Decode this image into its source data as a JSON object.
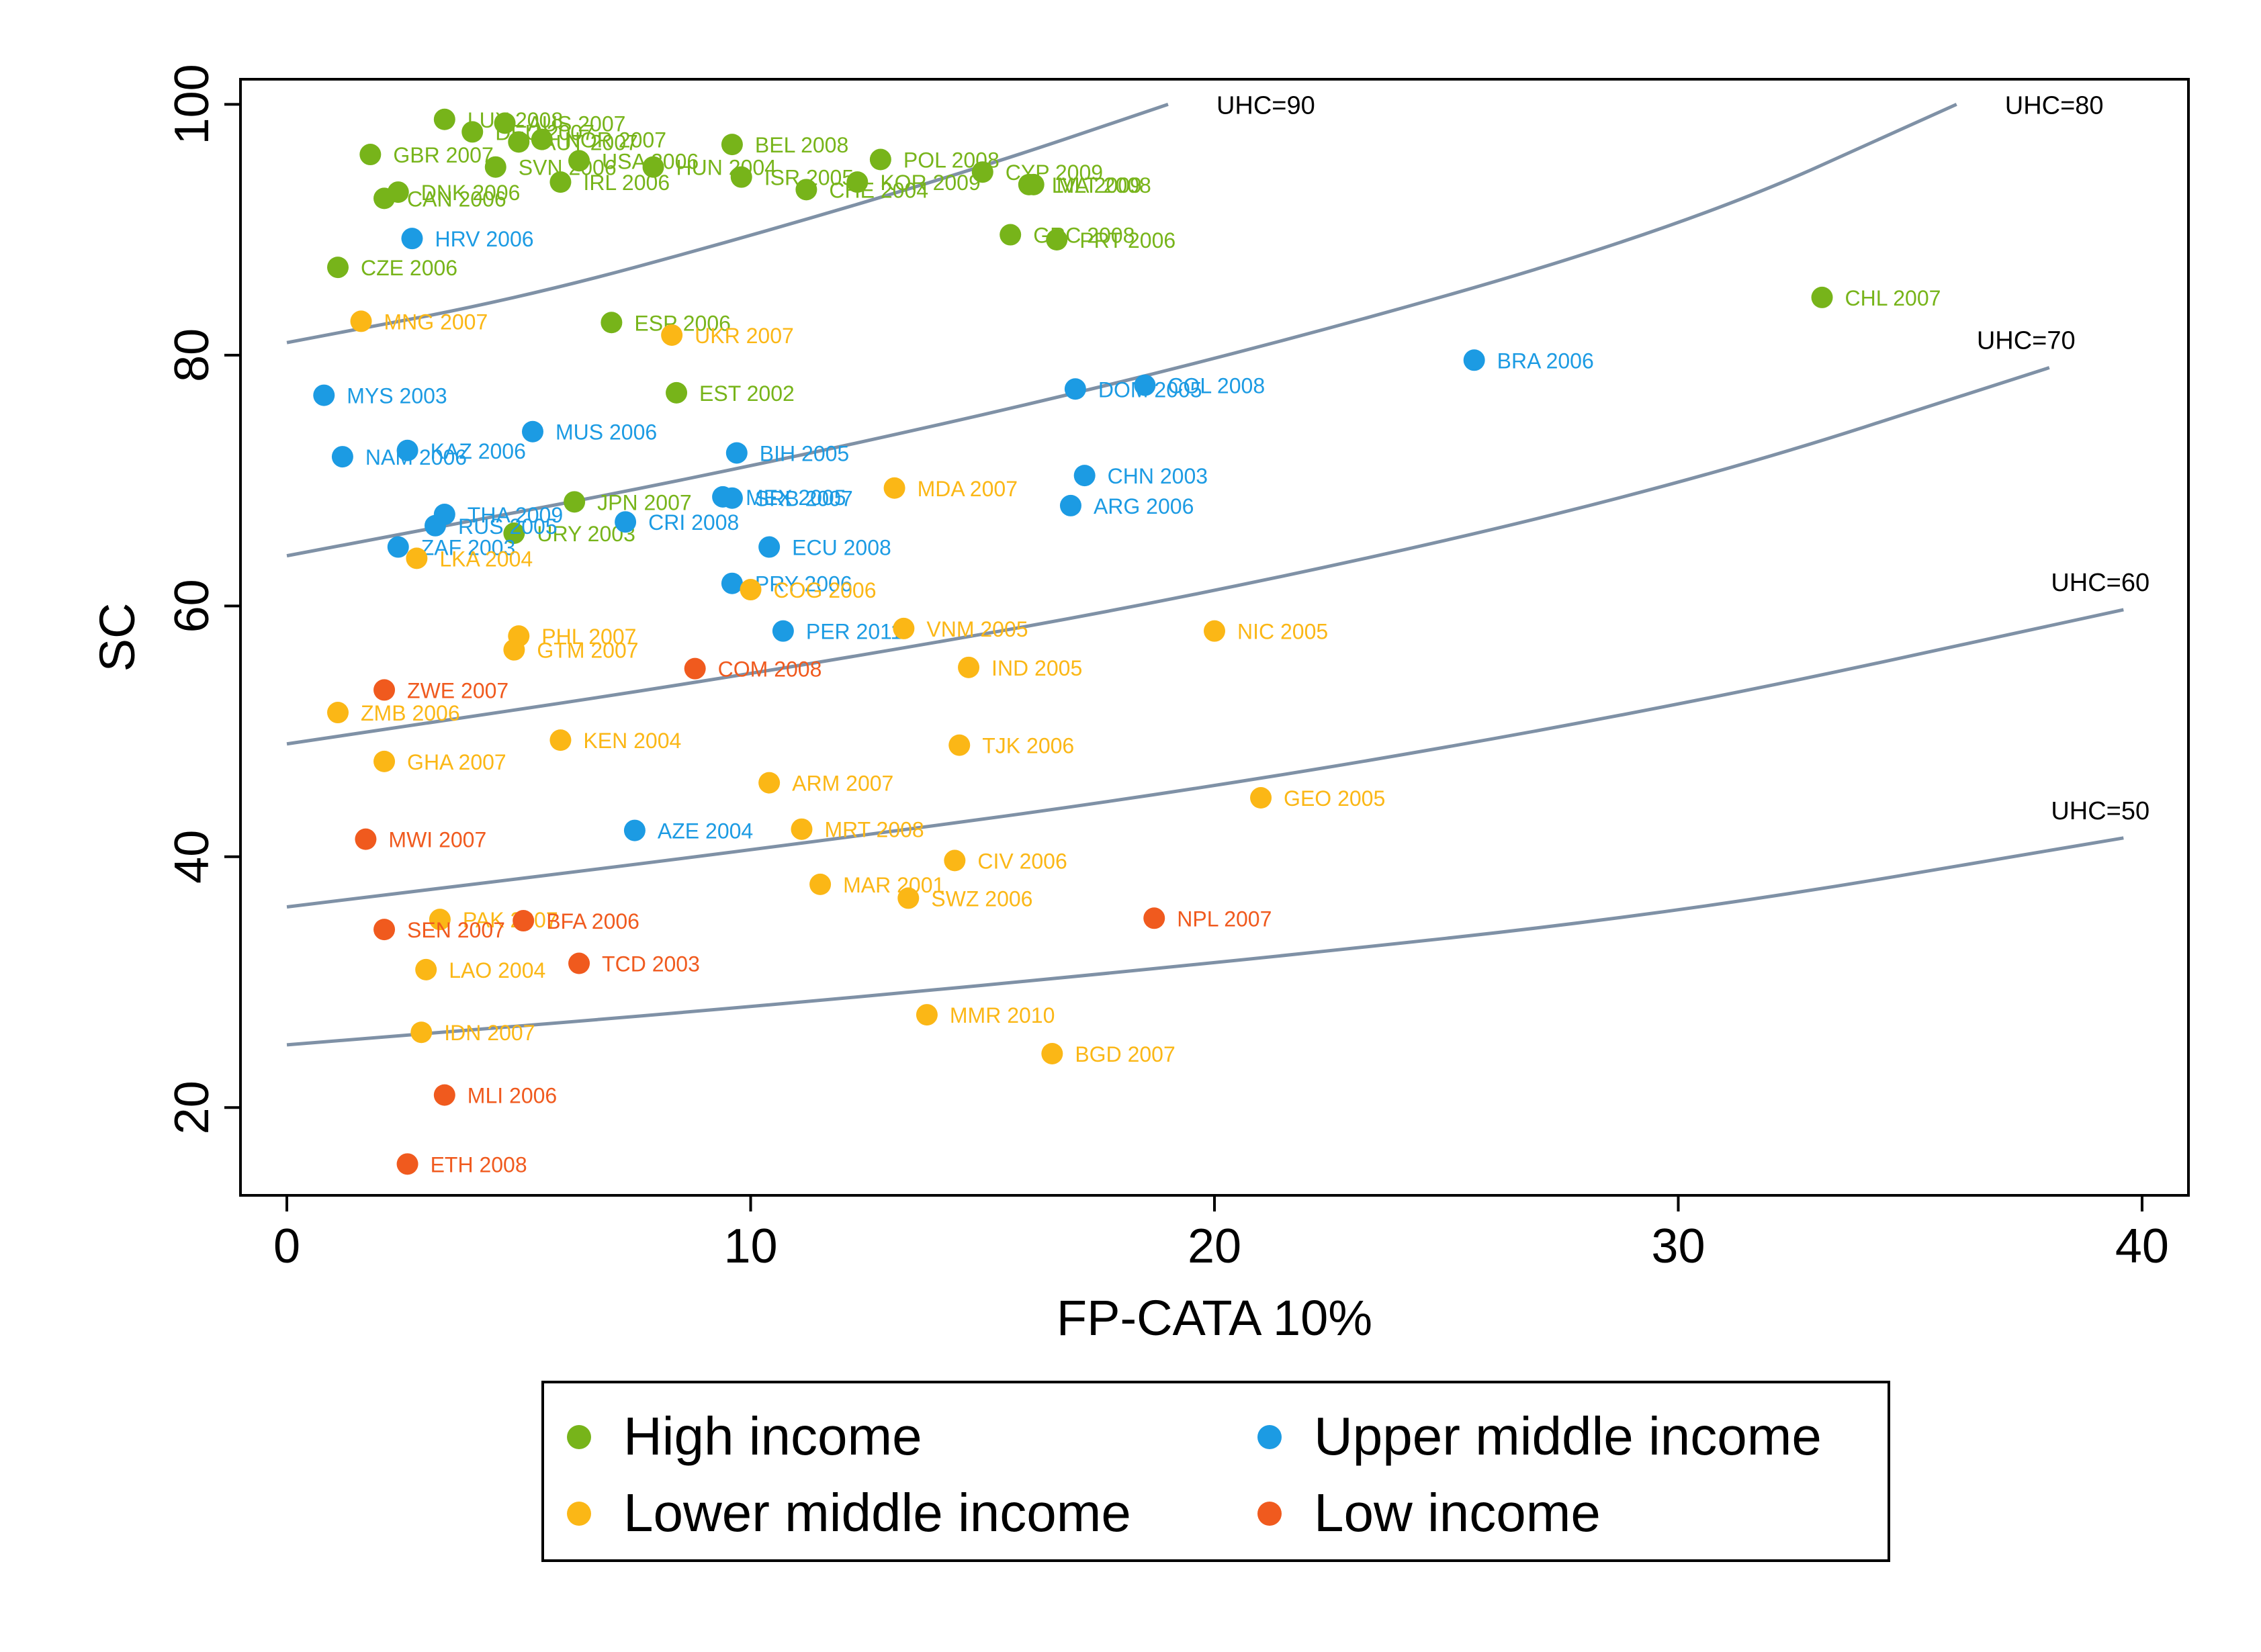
{
  "colors": {
    "high": "#77b41a",
    "upper": "#1c9be3",
    "lower": "#fbb716",
    "low": "#f05a1e",
    "curve": "#7f91a6"
  },
  "chart_data": {
    "type": "scatter",
    "xlabel": "FP-CATA 10%",
    "ylabel": "SC",
    "xlim": [
      -1,
      41
    ],
    "ylim": [
      13,
      102
    ],
    "xticks": [
      "0",
      "10",
      "20",
      "30",
      "40"
    ],
    "yticks": [
      "20",
      "40",
      "60",
      "80",
      "100"
    ],
    "legend_position": "bottom",
    "legend": [
      {
        "key": "high",
        "label": "High income"
      },
      {
        "key": "upper",
        "label": "Upper middle income"
      },
      {
        "key": "lower",
        "label": "Lower middle income"
      },
      {
        "key": "low",
        "label": "Low  income"
      }
    ],
    "curves": [
      {
        "label": "UHC=90",
        "points": [
          [
            0,
            81
          ],
          [
            5,
            84.5
          ],
          [
            10,
            89.5
          ],
          [
            15,
            95
          ],
          [
            19,
            100
          ]
        ]
      },
      {
        "label": "UHC=80",
        "points": [
          [
            0,
            64
          ],
          [
            10,
            71
          ],
          [
            20,
            79.5
          ],
          [
            30,
            90
          ],
          [
            36,
            100
          ]
        ]
      },
      {
        "label": "UHC=70",
        "points": [
          [
            0,
            49
          ],
          [
            10,
            54.5
          ],
          [
            20,
            61
          ],
          [
            30,
            69.5
          ],
          [
            38,
            79
          ]
        ]
      },
      {
        "label": "UHC=60",
        "points": [
          [
            0,
            36
          ],
          [
            10,
            40.5
          ],
          [
            20,
            45.5
          ],
          [
            30,
            52
          ],
          [
            39.6,
            59.7
          ]
        ]
      },
      {
        "label": "UHC=50",
        "points": [
          [
            0,
            25
          ],
          [
            10,
            28
          ],
          [
            20,
            31.5
          ],
          [
            30,
            35.5
          ],
          [
            39.6,
            41.5
          ]
        ]
      }
    ],
    "points": [
      {
        "x": 3.4,
        "y": 98.8,
        "g": "high",
        "label": "LUX 2008"
      },
      {
        "x": 4.0,
        "y": 97.8,
        "g": "high",
        "label": "DEU 2007"
      },
      {
        "x": 4.7,
        "y": 98.5,
        "g": "high",
        "label": "AUS 2007"
      },
      {
        "x": 5.0,
        "y": 97.0,
        "g": "high",
        "label": "AUT 2007"
      },
      {
        "x": 5.5,
        "y": 97.2,
        "g": "high",
        "label": "NOR 2007"
      },
      {
        "x": 4.5,
        "y": 95.0,
        "g": "high",
        "label": "SVN 2006"
      },
      {
        "x": 6.3,
        "y": 95.5,
        "g": "high",
        "label": "USA 2006"
      },
      {
        "x": 1.8,
        "y": 96.0,
        "g": "high",
        "label": "GBR 2007"
      },
      {
        "x": 2.4,
        "y": 93.0,
        "g": "high",
        "label": "DNK 2006"
      },
      {
        "x": 2.1,
        "y": 92.5,
        "g": "high",
        "label": "CAN 2006"
      },
      {
        "x": 5.9,
        "y": 93.8,
        "g": "high",
        "label": "IRL 2006"
      },
      {
        "x": 7.9,
        "y": 95.0,
        "g": "high",
        "label": "HUN 2004"
      },
      {
        "x": 9.6,
        "y": 96.8,
        "g": "high",
        "label": "BEL 2008"
      },
      {
        "x": 9.8,
        "y": 94.2,
        "g": "high",
        "label": "ISR 2005"
      },
      {
        "x": 11.2,
        "y": 93.2,
        "g": "high",
        "label": "CHE 2004"
      },
      {
        "x": 12.3,
        "y": 93.8,
        "g": "high",
        "label": "KOR 2009"
      },
      {
        "x": 12.8,
        "y": 95.6,
        "g": "high",
        "label": "POL 2008"
      },
      {
        "x": 15.0,
        "y": 94.6,
        "g": "high",
        "label": "CYP 2009"
      },
      {
        "x": 16.0,
        "y": 93.6,
        "g": "high",
        "label": "LVA 2009"
      },
      {
        "x": 16.1,
        "y": 93.6,
        "g": "high",
        "label": "MLT 2008"
      },
      {
        "x": 15.6,
        "y": 89.6,
        "g": "high",
        "label": "GRC 2008"
      },
      {
        "x": 16.6,
        "y": 89.2,
        "g": "high",
        "label": "PRT 2006"
      },
      {
        "x": 1.1,
        "y": 87.0,
        "g": "high",
        "label": "CZE 2006"
      },
      {
        "x": 7.0,
        "y": 82.6,
        "g": "high",
        "label": "ESP 2006"
      },
      {
        "x": 8.4,
        "y": 77.0,
        "g": "high",
        "label": "EST 2002"
      },
      {
        "x": 33.1,
        "y": 84.6,
        "g": "high",
        "label": "CHL 2007"
      },
      {
        "x": 6.2,
        "y": 68.3,
        "g": "high",
        "label": "JPN 2007"
      },
      {
        "x": 4.9,
        "y": 65.8,
        "g": "high",
        "label": "URY 2003"
      },
      {
        "x": 2.7,
        "y": 89.3,
        "g": "upper",
        "label": "HRV 2006"
      },
      {
        "x": 0.8,
        "y": 76.8,
        "g": "upper",
        "label": "MYS 2003"
      },
      {
        "x": 1.2,
        "y": 71.9,
        "g": "upper",
        "label": "NAM 2006"
      },
      {
        "x": 2.6,
        "y": 72.4,
        "g": "upper",
        "label": "KAZ 2006"
      },
      {
        "x": 5.3,
        "y": 73.9,
        "g": "upper",
        "label": "MUS 2006"
      },
      {
        "x": 3.4,
        "y": 67.3,
        "g": "upper",
        "label": "THA 2009"
      },
      {
        "x": 3.2,
        "y": 66.4,
        "g": "upper",
        "label": "RUS 2005"
      },
      {
        "x": 2.4,
        "y": 64.7,
        "g": "upper",
        "label": "ZAF 2003"
      },
      {
        "x": 7.3,
        "y": 66.7,
        "g": "upper",
        "label": "CRI 2008"
      },
      {
        "x": 9.7,
        "y": 72.2,
        "g": "upper",
        "label": "BIH 2005"
      },
      {
        "x": 9.4,
        "y": 68.7,
        "g": "upper",
        "label": "MEX 2005"
      },
      {
        "x": 9.6,
        "y": 68.6,
        "g": "upper",
        "label": "SRB 2007"
      },
      {
        "x": 10.4,
        "y": 64.7,
        "g": "upper",
        "label": "ECU 2008"
      },
      {
        "x": 9.6,
        "y": 61.8,
        "g": "upper",
        "label": "PRY 2006"
      },
      {
        "x": 10.7,
        "y": 58.0,
        "g": "upper",
        "label": "PER 2011"
      },
      {
        "x": 7.5,
        "y": 42.1,
        "g": "upper",
        "label": "AZE 2004"
      },
      {
        "x": 17.0,
        "y": 77.3,
        "g": "upper",
        "label": "DOM 2005"
      },
      {
        "x": 18.5,
        "y": 77.6,
        "g": "upper",
        "label": "COL 2008"
      },
      {
        "x": 17.2,
        "y": 70.4,
        "g": "upper",
        "label": "CHN 2003"
      },
      {
        "x": 16.9,
        "y": 68.0,
        "g": "upper",
        "label": "ARG 2006"
      },
      {
        "x": 25.6,
        "y": 79.6,
        "g": "upper",
        "label": "BRA 2006"
      },
      {
        "x": 1.6,
        "y": 82.7,
        "g": "lower",
        "label": "MNG 2007"
      },
      {
        "x": 8.3,
        "y": 81.6,
        "g": "lower",
        "label": "UKR 2007"
      },
      {
        "x": 2.8,
        "y": 63.8,
        "g": "lower",
        "label": "LKA 2004"
      },
      {
        "x": 13.1,
        "y": 69.4,
        "g": "lower",
        "label": "MDA 2007"
      },
      {
        "x": 10.0,
        "y": 61.3,
        "g": "lower",
        "label": "COG 2006"
      },
      {
        "x": 13.3,
        "y": 58.2,
        "g": "lower",
        "label": "VNM 2005"
      },
      {
        "x": 14.7,
        "y": 55.1,
        "g": "lower",
        "label": "IND 2005"
      },
      {
        "x": 20.0,
        "y": 58.0,
        "g": "lower",
        "label": "NIC 2005"
      },
      {
        "x": 5.0,
        "y": 57.6,
        "g": "lower",
        "label": "PHL 2007"
      },
      {
        "x": 4.9,
        "y": 56.5,
        "g": "lower",
        "label": "GTM 2007"
      },
      {
        "x": 1.1,
        "y": 51.5,
        "g": "lower",
        "label": "ZMB 2006"
      },
      {
        "x": 2.1,
        "y": 47.6,
        "g": "lower",
        "label": "GHA 2007"
      },
      {
        "x": 5.9,
        "y": 49.3,
        "g": "lower",
        "label": "KEN 2004"
      },
      {
        "x": 14.5,
        "y": 48.9,
        "g": "lower",
        "label": "TJK 2006"
      },
      {
        "x": 10.4,
        "y": 45.9,
        "g": "lower",
        "label": "ARM 2007"
      },
      {
        "x": 21.0,
        "y": 44.7,
        "g": "lower",
        "label": "GEO 2005"
      },
      {
        "x": 11.1,
        "y": 42.2,
        "g": "lower",
        "label": "MRT 2008"
      },
      {
        "x": 14.4,
        "y": 39.7,
        "g": "lower",
        "label": "CIV 2006"
      },
      {
        "x": 11.5,
        "y": 37.8,
        "g": "lower",
        "label": "MAR 2001"
      },
      {
        "x": 13.4,
        "y": 36.7,
        "g": "lower",
        "label": "SWZ 2006"
      },
      {
        "x": 3.3,
        "y": 35.0,
        "g": "lower",
        "label": "PAK 2007"
      },
      {
        "x": 3.0,
        "y": 31.0,
        "g": "lower",
        "label": "LAO 2004"
      },
      {
        "x": 2.9,
        "y": 26.0,
        "g": "lower",
        "label": "IDN 2007"
      },
      {
        "x": 13.8,
        "y": 27.4,
        "g": "lower",
        "label": "MMR 2010"
      },
      {
        "x": 16.5,
        "y": 24.3,
        "g": "lower",
        "label": "BGD 2007"
      },
      {
        "x": 2.1,
        "y": 53.3,
        "g": "low",
        "label": "ZWE 2007"
      },
      {
        "x": 8.8,
        "y": 55.0,
        "g": "low",
        "label": "COM 2008"
      },
      {
        "x": 1.7,
        "y": 41.4,
        "g": "low",
        "label": "MWI 2007"
      },
      {
        "x": 2.1,
        "y": 34.2,
        "g": "low",
        "label": "SEN 2007"
      },
      {
        "x": 5.1,
        "y": 34.9,
        "g": "low",
        "label": "BFA 2006"
      },
      {
        "x": 6.3,
        "y": 31.5,
        "g": "low",
        "label": "TCD 2003"
      },
      {
        "x": 18.7,
        "y": 35.1,
        "g": "low",
        "label": "NPL 2007"
      },
      {
        "x": 3.4,
        "y": 21.0,
        "g": "low",
        "label": "MLI 2006"
      },
      {
        "x": 2.6,
        "y": 15.5,
        "g": "low",
        "label": "ETH 2008"
      }
    ]
  }
}
